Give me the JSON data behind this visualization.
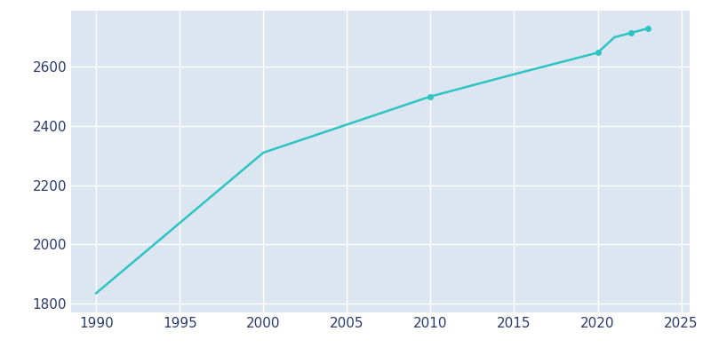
{
  "years": [
    1990,
    2000,
    2010,
    2015,
    2020,
    2021,
    2022,
    2023
  ],
  "population": [
    1835,
    2310,
    2500,
    2575,
    2648,
    2700,
    2715,
    2730
  ],
  "line_color": "#2ec4c4",
  "marker_years": [
    2010,
    2020,
    2022,
    2023
  ],
  "marker_values": [
    2500,
    2648,
    2715,
    2730
  ],
  "bg_color": "#dce6f0",
  "fig_bg_color": "#ffffff",
  "grid_color": "#ffffff",
  "text_color": "#2b3a6e",
  "xlim": [
    1988.5,
    2025.5
  ],
  "ylim": [
    1770,
    2790
  ],
  "xticks": [
    1990,
    1995,
    2000,
    2005,
    2010,
    2015,
    2020,
    2025
  ],
  "yticks": [
    1800,
    2000,
    2200,
    2400,
    2600
  ]
}
